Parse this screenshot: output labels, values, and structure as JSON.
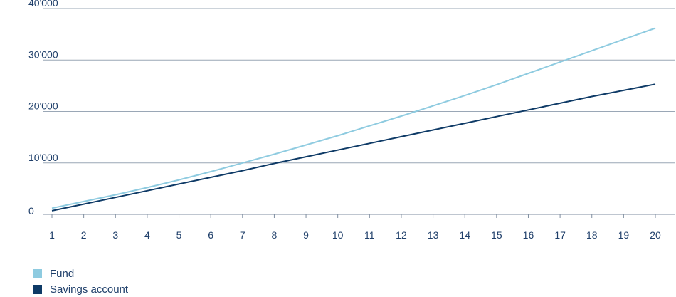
{
  "chart_data": {
    "type": "line",
    "x": [
      1,
      2,
      3,
      4,
      5,
      6,
      7,
      8,
      9,
      10,
      11,
      12,
      13,
      14,
      15,
      16,
      17,
      18,
      19,
      20
    ],
    "ylim": [
      0,
      40000
    ],
    "yticks": [
      0,
      10000,
      20000,
      30000,
      40000
    ],
    "ytick_labels": [
      "0",
      "10'000",
      "20'000",
      "30'000",
      "40'000"
    ],
    "xtick_labels": [
      "1",
      "2",
      "3",
      "4",
      "5",
      "6",
      "7",
      "8",
      "9",
      "10",
      "11",
      "12",
      "13",
      "14",
      "15",
      "16",
      "17",
      "18",
      "19",
      "20"
    ],
    "grid": true,
    "legend_placement": "bottom-left",
    "series": [
      {
        "name": "Fund",
        "color": "#8ecbe0",
        "values": [
          1200,
          2500,
          3800,
          5200,
          6700,
          8300,
          10000,
          11700,
          13500,
          15300,
          17200,
          19100,
          21100,
          23100,
          25200,
          27400,
          29600,
          31800,
          34000,
          36200
        ]
      },
      {
        "name": "Savings account",
        "color": "#0e3a66",
        "values": [
          700,
          2000,
          3300,
          4600,
          5900,
          7200,
          8500,
          9900,
          11200,
          12500,
          13800,
          15100,
          16400,
          17700,
          19000,
          20300,
          21600,
          22900,
          24100,
          25300
        ]
      }
    ]
  }
}
